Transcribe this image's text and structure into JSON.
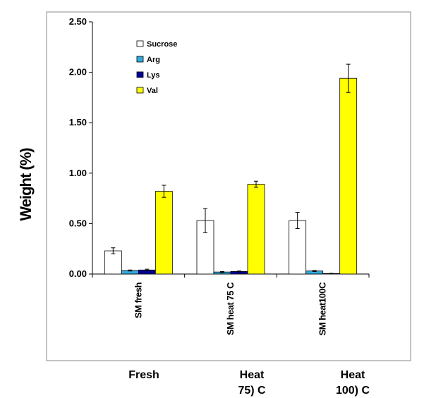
{
  "chart_data": {
    "type": "bar",
    "title": "",
    "xlabel": "",
    "ylabel": "Weight (%)",
    "ylim": [
      0,
      2.5
    ],
    "yticks": [
      "0.00",
      "0.50",
      "1.00",
      "1.50",
      "2.00",
      "2.50"
    ],
    "categories": [
      "SM fresh",
      "SM heat 75 C",
      "SM heat100C"
    ],
    "group_labels": [
      [
        "Fresh"
      ],
      [
        "Heat",
        "75) C"
      ],
      [
        "Heat",
        "100) C"
      ]
    ],
    "legend_position": "top-left",
    "series": [
      {
        "name": "Sucrose",
        "color": "#ffffff",
        "values": [
          0.23,
          0.53,
          0.53
        ],
        "errors": [
          0.03,
          0.12,
          0.08
        ]
      },
      {
        "name": "Arg",
        "color": "#33aadd",
        "values": [
          0.035,
          0.02,
          0.03
        ],
        "errors": [
          0.005,
          0.005,
          0.005
        ]
      },
      {
        "name": "Lys",
        "color": "#000099",
        "values": [
          0.04,
          0.025,
          0.005
        ],
        "errors": [
          0.008,
          0.005,
          0.002
        ]
      },
      {
        "name": "Val",
        "color": "#ffff00",
        "values": [
          0.82,
          0.89,
          1.94
        ],
        "errors": [
          0.06,
          0.03,
          0.14
        ]
      }
    ]
  }
}
